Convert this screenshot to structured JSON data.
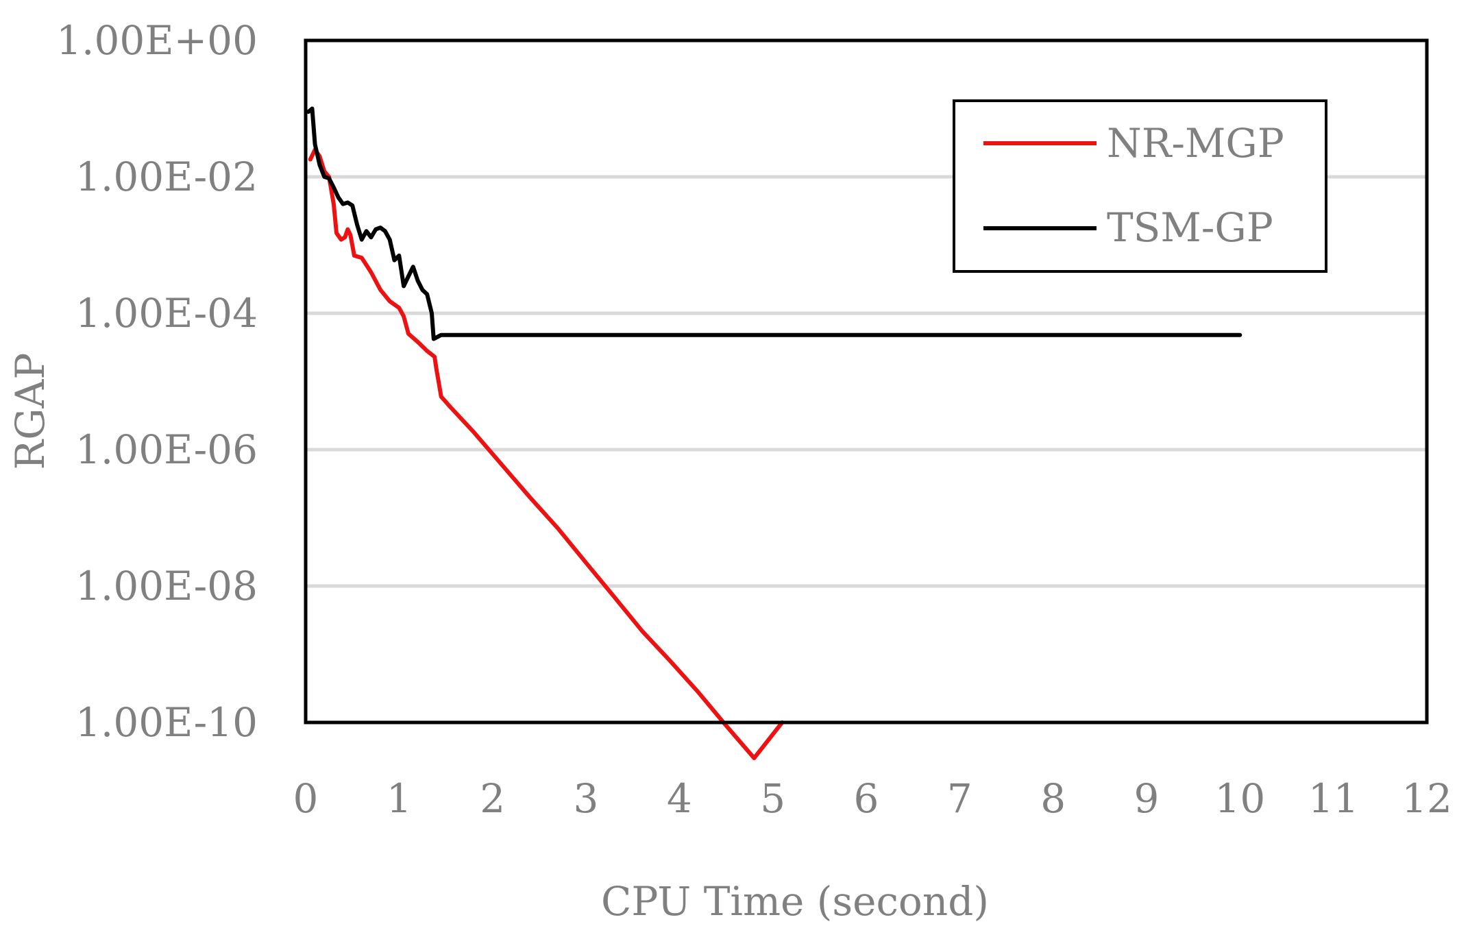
{
  "chart_data": {
    "type": "line",
    "title": "",
    "xlabel": "CPU Time (second)",
    "ylabel": "RGAP",
    "xlim": [
      0,
      12
    ],
    "ylim": [
      1e-10,
      1
    ],
    "yscale": "log",
    "grid": {
      "y": true,
      "x": false,
      "color": "#d9d9d9"
    },
    "legend": "top-right",
    "x_ticks": [
      "0",
      "1",
      "2",
      "3",
      "4",
      "5",
      "6",
      "7",
      "8",
      "9",
      "10",
      "11",
      "12"
    ],
    "y_ticks": [
      "1.00E+00",
      "1.00E-02",
      "1.00E-04",
      "1.00E-06",
      "1.00E-08",
      "1.00E-10"
    ],
    "series": [
      {
        "name": "NR-MGP",
        "color": "#ee1111",
        "points": [
          [
            0.05,
            0.018
          ],
          [
            0.1,
            0.025
          ],
          [
            0.15,
            0.02
          ],
          [
            0.2,
            0.012
          ],
          [
            0.25,
            0.01
          ],
          [
            0.3,
            0.004
          ],
          [
            0.33,
            0.0015
          ],
          [
            0.38,
            0.0012
          ],
          [
            0.42,
            0.0013
          ],
          [
            0.45,
            0.0017
          ],
          [
            0.48,
            0.0014
          ],
          [
            0.52,
            0.0007
          ],
          [
            0.6,
            0.00065
          ],
          [
            0.7,
            0.0004
          ],
          [
            0.8,
            0.00022
          ],
          [
            0.9,
            0.00015
          ],
          [
            1.0,
            0.00012
          ],
          [
            1.05,
            9e-05
          ],
          [
            1.1,
            5e-05
          ],
          [
            1.2,
            3.8e-05
          ],
          [
            1.3,
            2.8e-05
          ],
          [
            1.38,
            2.3e-05
          ],
          [
            1.4,
            1.5e-05
          ],
          [
            1.45,
            6e-06
          ],
          [
            1.55,
            4.2e-06
          ],
          [
            1.8,
            1.8e-06
          ],
          [
            2.1,
            6e-07
          ],
          [
            2.4,
            2e-07
          ],
          [
            2.7,
            7e-08
          ],
          [
            3.0,
            2.2e-08
          ],
          [
            3.3,
            7e-09
          ],
          [
            3.6,
            2.2e-09
          ],
          [
            3.9,
            8e-10
          ],
          [
            4.2,
            2.8e-10
          ],
          [
            4.5,
            9e-11
          ],
          [
            4.8,
            3e-11
          ],
          [
            5.1,
            1e-10
          ]
        ]
      },
      {
        "name": "TSM-GP",
        "color": "#000000",
        "points": [
          [
            0.03,
            0.09
          ],
          [
            0.07,
            0.1
          ],
          [
            0.1,
            0.03
          ],
          [
            0.15,
            0.015
          ],
          [
            0.2,
            0.01
          ],
          [
            0.25,
            0.0095
          ],
          [
            0.3,
            0.007
          ],
          [
            0.35,
            0.005
          ],
          [
            0.4,
            0.004
          ],
          [
            0.45,
            0.0042
          ],
          [
            0.5,
            0.0038
          ],
          [
            0.55,
            0.002
          ],
          [
            0.6,
            0.0012
          ],
          [
            0.65,
            0.0016
          ],
          [
            0.7,
            0.0013
          ],
          [
            0.75,
            0.0017
          ],
          [
            0.8,
            0.0018
          ],
          [
            0.85,
            0.0016
          ],
          [
            0.9,
            0.0012
          ],
          [
            0.95,
            0.0006
          ],
          [
            1.0,
            0.0007
          ],
          [
            1.05,
            0.00025
          ],
          [
            1.1,
            0.00035
          ],
          [
            1.15,
            0.00048
          ],
          [
            1.2,
            0.0003
          ],
          [
            1.25,
            0.00022
          ],
          [
            1.3,
            0.00019
          ],
          [
            1.35,
            0.0001
          ],
          [
            1.37,
            4.2e-05
          ],
          [
            1.45,
            4.8e-05
          ],
          [
            2.0,
            4.8e-05
          ],
          [
            5.0,
            4.8e-05
          ],
          [
            8.0,
            4.8e-05
          ],
          [
            10.0,
            4.8e-05
          ]
        ]
      }
    ]
  }
}
